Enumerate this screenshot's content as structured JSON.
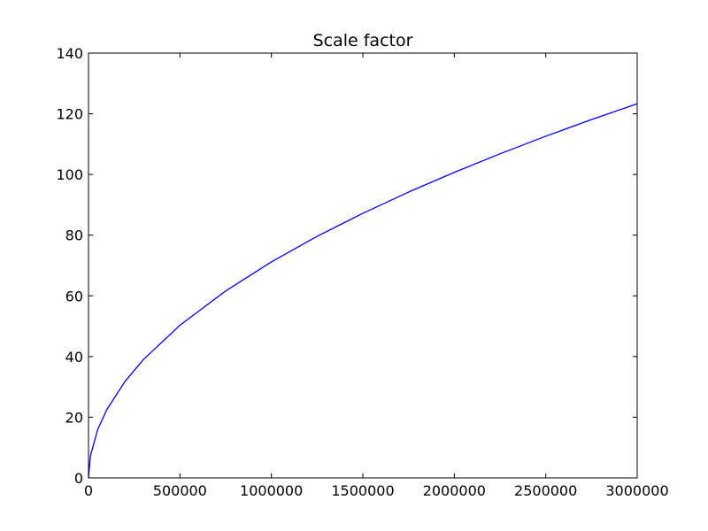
{
  "chart_data": {
    "type": "line",
    "title": "Scale factor",
    "xlabel": "",
    "ylabel": "",
    "xlim": [
      0,
      3000000
    ],
    "ylim": [
      0,
      140
    ],
    "x_ticks": [
      0,
      500000,
      1000000,
      1500000,
      2000000,
      2500000,
      3000000
    ],
    "x_tick_labels": [
      "0",
      "500000",
      "1000000",
      "1500000",
      "2000000",
      "2500000",
      "3000000"
    ],
    "y_ticks": [
      0,
      20,
      40,
      60,
      80,
      100,
      120,
      140
    ],
    "y_tick_labels": [
      "0",
      "20",
      "40",
      "60",
      "80",
      "100",
      "120",
      "140"
    ],
    "grid": false,
    "legend": "none",
    "series": [
      {
        "color": "#0000ff",
        "x": [
          0,
          10000,
          50000,
          100000,
          200000,
          300000,
          500000,
          750000,
          1000000,
          1250000,
          1500000,
          1750000,
          2000000,
          2250000,
          2500000,
          2750000,
          3000000
        ],
        "y": [
          0,
          7.1,
          15.9,
          22.5,
          31.8,
          39.0,
          50.3,
          61.6,
          71.2,
          79.6,
          87.2,
          94.2,
          100.7,
          106.8,
          112.6,
          118.1,
          123.3
        ]
      }
    ]
  }
}
